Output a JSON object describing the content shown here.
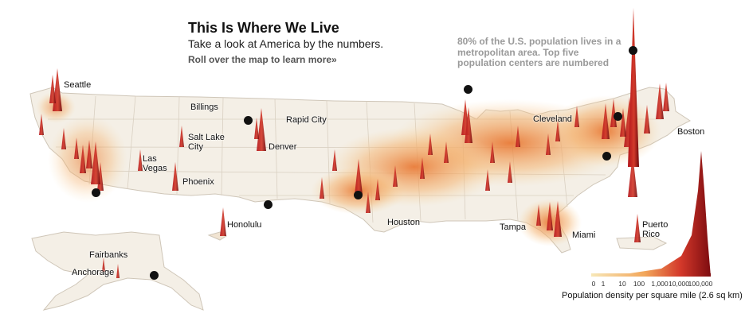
{
  "header": {
    "title": "This Is Where We Live",
    "subtitle": "Take a look at America by the numbers.",
    "cta": "Roll over the map to learn more»"
  },
  "note": {
    "line1": "80% of the U.S. population lives in a",
    "line2": "metropolitan area. Top five",
    "line3": "population centers are numbered"
  },
  "cities": {
    "seattle": "Seattle",
    "billings": "Billings",
    "rapid_city": "Rapid City",
    "salt_lake_1": "Salt Lake",
    "salt_lake_2": "City",
    "denver": "Denver",
    "las_vegas_1": "Las",
    "las_vegas_2": "Vegas",
    "phoenix": "Phoenix",
    "honolulu": "Honolulu",
    "houston": "Houston",
    "cleveland": "Cleveland",
    "boston": "Boston",
    "tampa": "Tampa",
    "miami": "Miami",
    "puerto_rico_1": "Puerto",
    "puerto_rico_2": "Rico",
    "fairbanks": "Fairbanks",
    "anchorage": "Anchorage"
  },
  "legend": {
    "label": "Population density per square mile (2.6 sq km)",
    "ticks": [
      "0",
      "1",
      "10",
      "100",
      "1,000",
      "10,000",
      "100,000"
    ]
  },
  "colors": {
    "land": "#f4efe6",
    "spike_dark": "#8e0e12",
    "spike_mid": "#d0301f",
    "density_light": "#f6c98a",
    "border": "#cfc6b8",
    "note_text": "#9a9a9a"
  }
}
